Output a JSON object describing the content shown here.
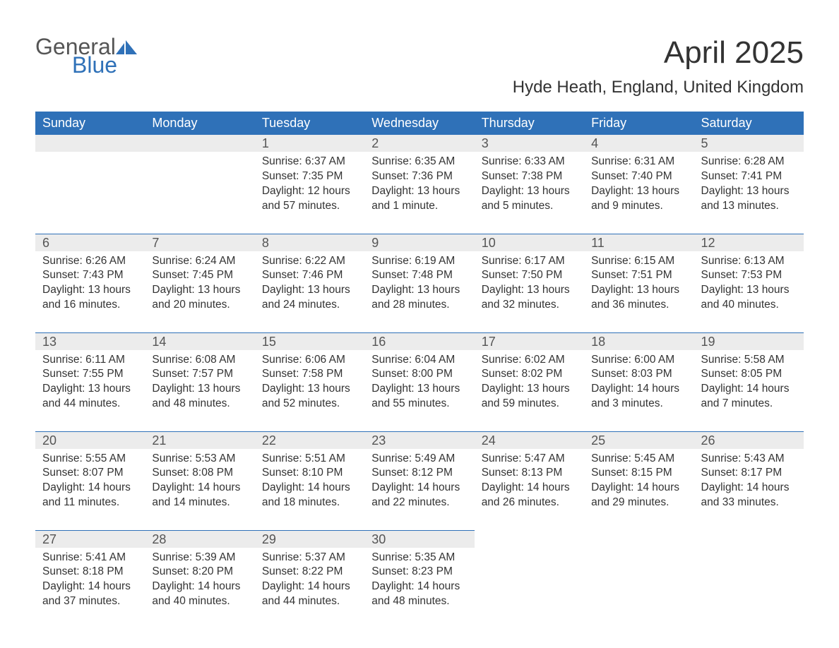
{
  "brand": {
    "general": "General",
    "blue": "Blue"
  },
  "header": {
    "month_title": "April 2025",
    "location": "Hyde Heath, England, United Kingdom"
  },
  "colors": {
    "header_bg": "#2f71b8",
    "header_text": "#ffffff",
    "daynum_bg": "#ececec",
    "row_border": "#2f71b8",
    "body_text": "#333333",
    "logo_blue": "#2f71b8",
    "logo_gray": "#555555",
    "page_bg": "#ffffff"
  },
  "typography": {
    "month_title_fontsize": 44,
    "location_fontsize": 24,
    "weekday_fontsize": 18,
    "daynum_fontsize": 18,
    "body_fontsize": 15.5,
    "logo_fontsize": 32
  },
  "calendar": {
    "type": "table",
    "weekdays": [
      "Sunday",
      "Monday",
      "Tuesday",
      "Wednesday",
      "Thursday",
      "Friday",
      "Saturday"
    ],
    "weeks": [
      [
        null,
        null,
        {
          "n": "1",
          "sunrise": "6:37 AM",
          "sunset": "7:35 PM",
          "daylight": "12 hours and 57 minutes."
        },
        {
          "n": "2",
          "sunrise": "6:35 AM",
          "sunset": "7:36 PM",
          "daylight": "13 hours and 1 minute."
        },
        {
          "n": "3",
          "sunrise": "6:33 AM",
          "sunset": "7:38 PM",
          "daylight": "13 hours and 5 minutes."
        },
        {
          "n": "4",
          "sunrise": "6:31 AM",
          "sunset": "7:40 PM",
          "daylight": "13 hours and 9 minutes."
        },
        {
          "n": "5",
          "sunrise": "6:28 AM",
          "sunset": "7:41 PM",
          "daylight": "13 hours and 13 minutes."
        }
      ],
      [
        {
          "n": "6",
          "sunrise": "6:26 AM",
          "sunset": "7:43 PM",
          "daylight": "13 hours and 16 minutes."
        },
        {
          "n": "7",
          "sunrise": "6:24 AM",
          "sunset": "7:45 PM",
          "daylight": "13 hours and 20 minutes."
        },
        {
          "n": "8",
          "sunrise": "6:22 AM",
          "sunset": "7:46 PM",
          "daylight": "13 hours and 24 minutes."
        },
        {
          "n": "9",
          "sunrise": "6:19 AM",
          "sunset": "7:48 PM",
          "daylight": "13 hours and 28 minutes."
        },
        {
          "n": "10",
          "sunrise": "6:17 AM",
          "sunset": "7:50 PM",
          "daylight": "13 hours and 32 minutes."
        },
        {
          "n": "11",
          "sunrise": "6:15 AM",
          "sunset": "7:51 PM",
          "daylight": "13 hours and 36 minutes."
        },
        {
          "n": "12",
          "sunrise": "6:13 AM",
          "sunset": "7:53 PM",
          "daylight": "13 hours and 40 minutes."
        }
      ],
      [
        {
          "n": "13",
          "sunrise": "6:11 AM",
          "sunset": "7:55 PM",
          "daylight": "13 hours and 44 minutes."
        },
        {
          "n": "14",
          "sunrise": "6:08 AM",
          "sunset": "7:57 PM",
          "daylight": "13 hours and 48 minutes."
        },
        {
          "n": "15",
          "sunrise": "6:06 AM",
          "sunset": "7:58 PM",
          "daylight": "13 hours and 52 minutes."
        },
        {
          "n": "16",
          "sunrise": "6:04 AM",
          "sunset": "8:00 PM",
          "daylight": "13 hours and 55 minutes."
        },
        {
          "n": "17",
          "sunrise": "6:02 AM",
          "sunset": "8:02 PM",
          "daylight": "13 hours and 59 minutes."
        },
        {
          "n": "18",
          "sunrise": "6:00 AM",
          "sunset": "8:03 PM",
          "daylight": "14 hours and 3 minutes."
        },
        {
          "n": "19",
          "sunrise": "5:58 AM",
          "sunset": "8:05 PM",
          "daylight": "14 hours and 7 minutes."
        }
      ],
      [
        {
          "n": "20",
          "sunrise": "5:55 AM",
          "sunset": "8:07 PM",
          "daylight": "14 hours and 11 minutes."
        },
        {
          "n": "21",
          "sunrise": "5:53 AM",
          "sunset": "8:08 PM",
          "daylight": "14 hours and 14 minutes."
        },
        {
          "n": "22",
          "sunrise": "5:51 AM",
          "sunset": "8:10 PM",
          "daylight": "14 hours and 18 minutes."
        },
        {
          "n": "23",
          "sunrise": "5:49 AM",
          "sunset": "8:12 PM",
          "daylight": "14 hours and 22 minutes."
        },
        {
          "n": "24",
          "sunrise": "5:47 AM",
          "sunset": "8:13 PM",
          "daylight": "14 hours and 26 minutes."
        },
        {
          "n": "25",
          "sunrise": "5:45 AM",
          "sunset": "8:15 PM",
          "daylight": "14 hours and 29 minutes."
        },
        {
          "n": "26",
          "sunrise": "5:43 AM",
          "sunset": "8:17 PM",
          "daylight": "14 hours and 33 minutes."
        }
      ],
      [
        {
          "n": "27",
          "sunrise": "5:41 AM",
          "sunset": "8:18 PM",
          "daylight": "14 hours and 37 minutes."
        },
        {
          "n": "28",
          "sunrise": "5:39 AM",
          "sunset": "8:20 PM",
          "daylight": "14 hours and 40 minutes."
        },
        {
          "n": "29",
          "sunrise": "5:37 AM",
          "sunset": "8:22 PM",
          "daylight": "14 hours and 44 minutes."
        },
        {
          "n": "30",
          "sunrise": "5:35 AM",
          "sunset": "8:23 PM",
          "daylight": "14 hours and 48 minutes."
        },
        null,
        null,
        null
      ]
    ],
    "labels": {
      "sunrise_prefix": "Sunrise: ",
      "sunset_prefix": "Sunset: ",
      "daylight_prefix": "Daylight: "
    }
  }
}
